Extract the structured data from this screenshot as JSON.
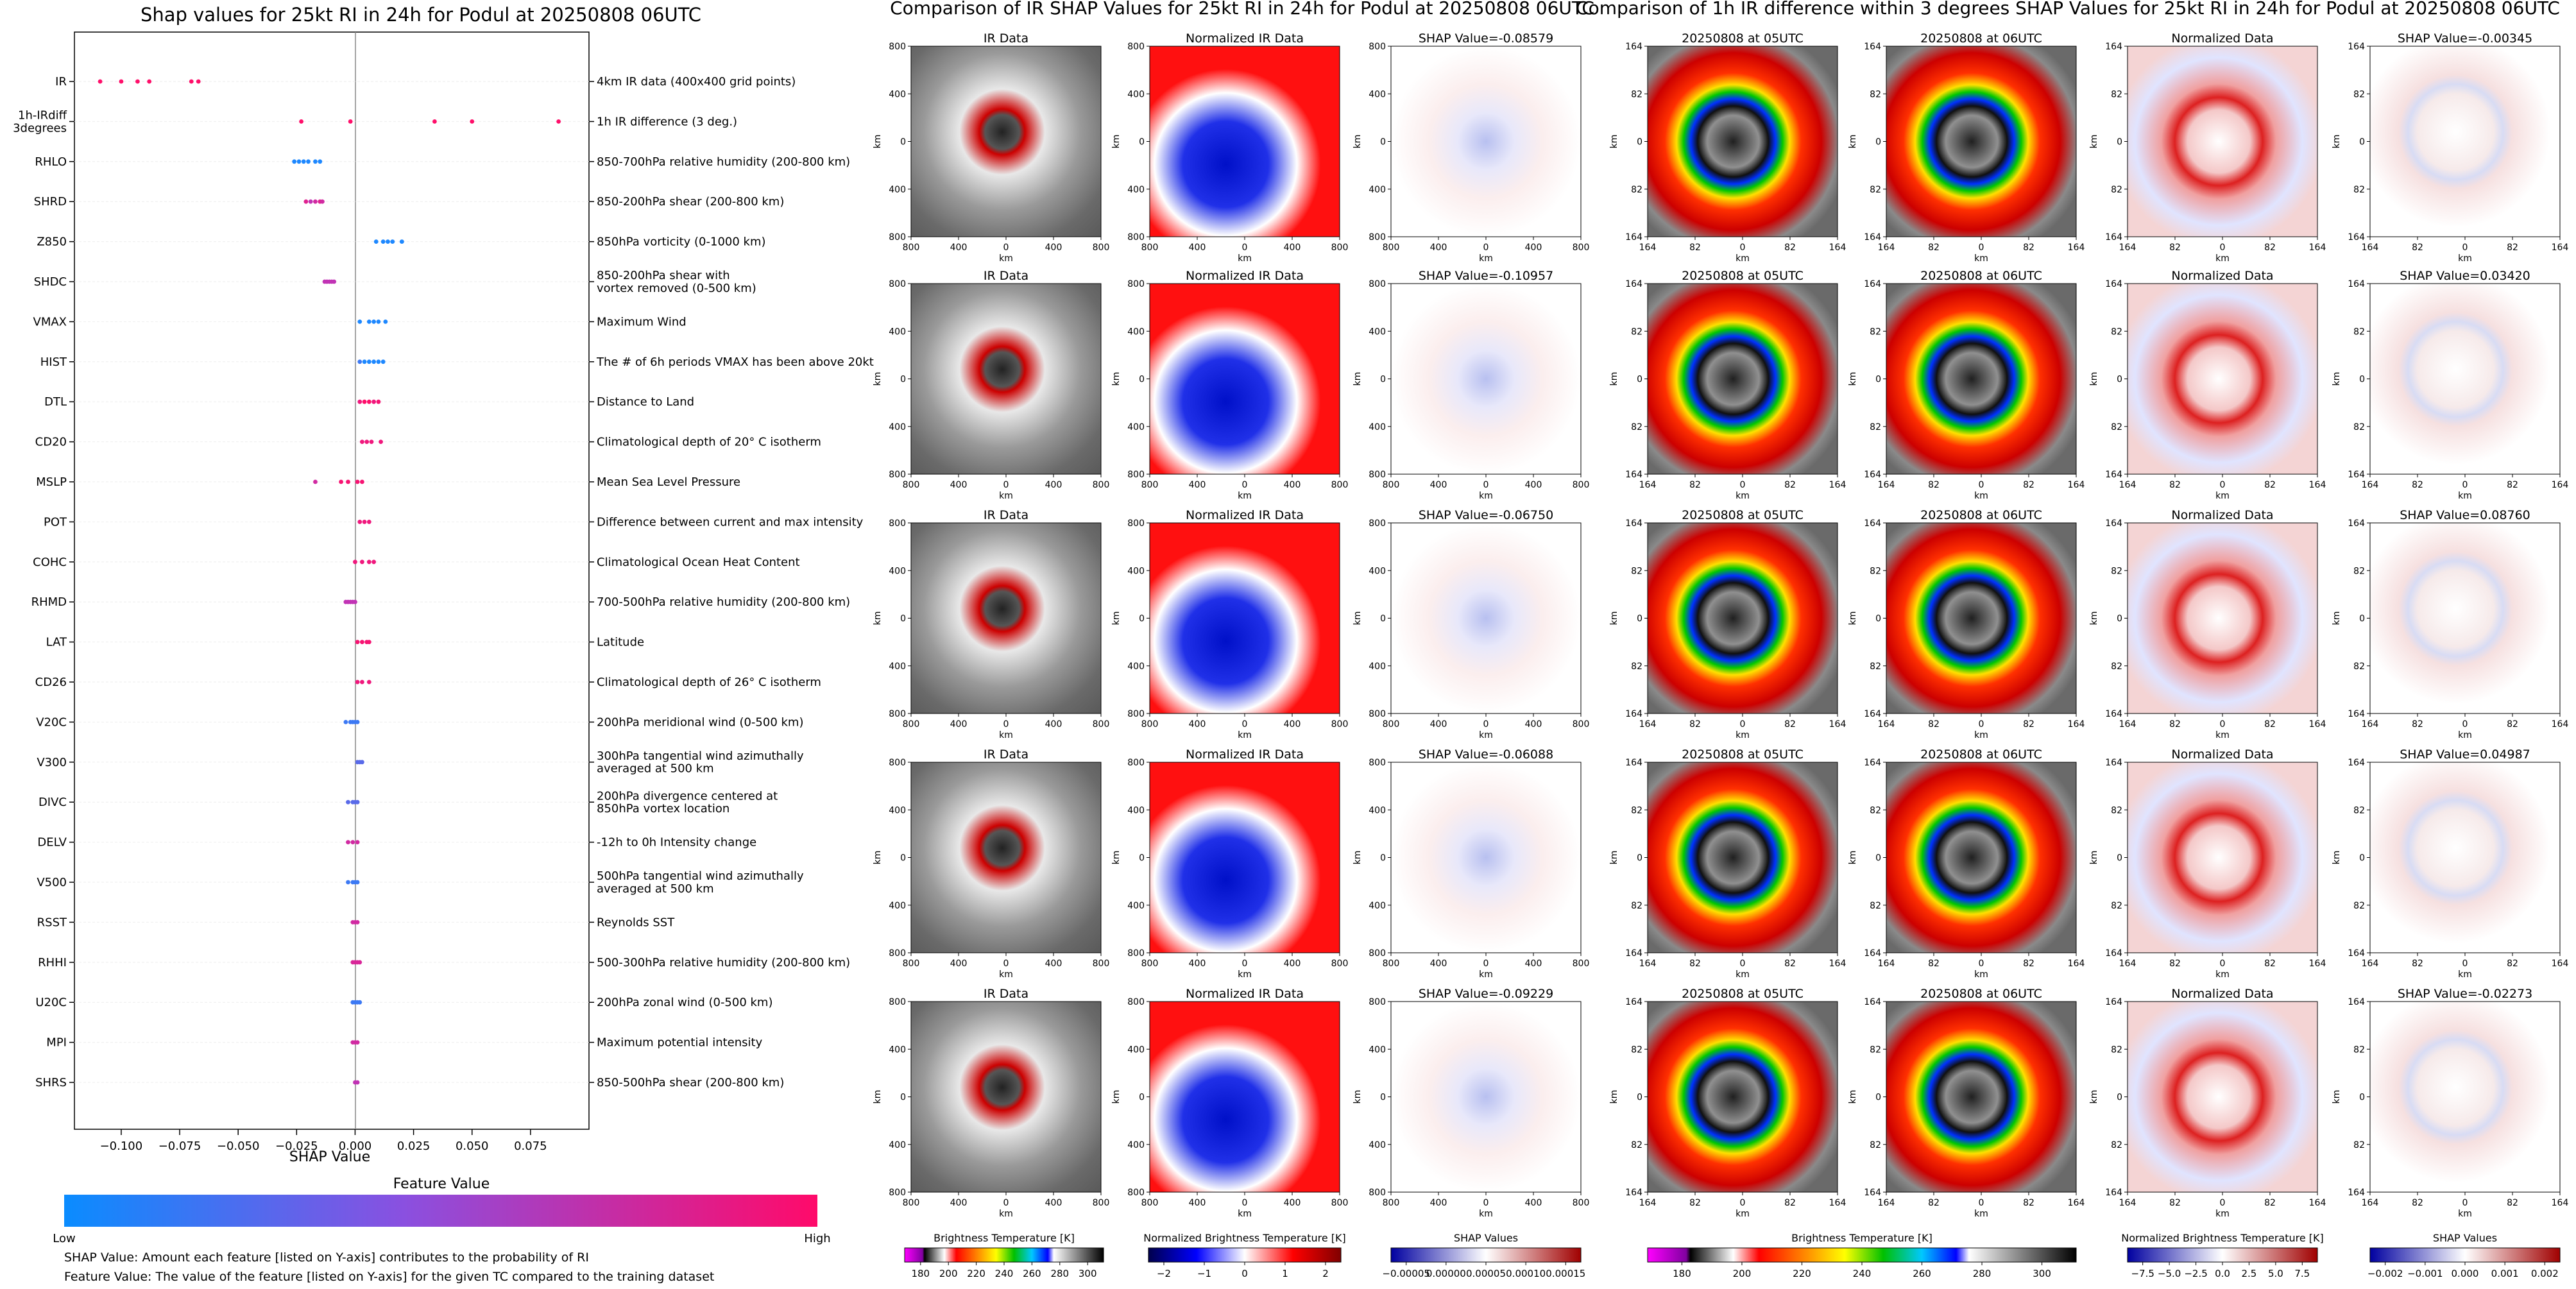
{
  "summary": {
    "title": "Shap values for 25kt RI in 24h for Podul at 20250808 06UTC",
    "xlabel": "SHAP Value",
    "colorbar_title": "Feature Value",
    "colorbar_low": "Low",
    "colorbar_high": "High",
    "note1": "SHAP Value: Amount each feature [listed on Y-axis] contributes to the probability of RI",
    "note2": "Feature Value: The value of the feature [listed on Y-axis] for the given TC compared to the training dataset",
    "colors": {
      "low": "#1e88ff",
      "mid": "#b23cc8",
      "high": "#ff0f6a"
    }
  },
  "chart_data": {
    "type": "scatter",
    "title": "Shap values for 25kt RI in 24h for Podul at 20250808 06UTC",
    "xlabel": "SHAP Value",
    "xlim": [
      -0.12,
      0.1
    ],
    "xticks": [
      -0.1,
      -0.075,
      -0.05,
      -0.025,
      0.0,
      0.025,
      0.05,
      0.075
    ],
    "xtick_labels": [
      "−0.100",
      "−0.075",
      "−0.050",
      "−0.025",
      "0.000",
      "0.025",
      "0.050",
      "0.075"
    ],
    "features": [
      {
        "code": "IR",
        "desc": "4km IR data (400x400 grid points)",
        "points": [
          [
            -0.109,
            1
          ],
          [
            -0.1,
            1
          ],
          [
            -0.093,
            1
          ],
          [
            -0.088,
            1
          ],
          [
            -0.07,
            1
          ],
          [
            -0.067,
            1
          ]
        ]
      },
      {
        "code": "1h-IRdiff\n3degrees",
        "desc": "1h IR difference (3 deg.)",
        "points": [
          [
            -0.023,
            1
          ],
          [
            -0.002,
            1
          ],
          [
            0.034,
            1
          ],
          [
            0.05,
            1
          ],
          [
            0.087,
            1
          ]
        ]
      },
      {
        "code": "RHLO",
        "desc": "850-700hPa relative humidity (200-800 km)",
        "points": [
          [
            -0.026,
            0
          ],
          [
            -0.024,
            0
          ],
          [
            -0.022,
            0
          ],
          [
            -0.02,
            0
          ],
          [
            -0.017,
            0
          ],
          [
            -0.015,
            0
          ]
        ]
      },
      {
        "code": "SHRD",
        "desc": "850-200hPa shear (200-800 km)",
        "points": [
          [
            -0.021,
            0.8
          ],
          [
            -0.019,
            0.6
          ],
          [
            -0.017,
            0.7
          ],
          [
            -0.015,
            0.8
          ],
          [
            -0.014,
            0.7
          ]
        ]
      },
      {
        "code": "Z850",
        "desc": "850hPa vorticity (0-1000 km)",
        "points": [
          [
            0.009,
            0
          ],
          [
            0.012,
            0
          ],
          [
            0.014,
            0
          ],
          [
            0.016,
            0
          ],
          [
            0.02,
            0
          ]
        ]
      },
      {
        "code": "SHDC",
        "desc": "850-200hPa shear with\nvortex removed (0-500 km)",
        "points": [
          [
            -0.013,
            0.6
          ],
          [
            -0.012,
            0.6
          ],
          [
            -0.011,
            0.6
          ],
          [
            -0.01,
            0.6
          ],
          [
            -0.009,
            0.6
          ]
        ]
      },
      {
        "code": "VMAX",
        "desc": "Maximum Wind",
        "points": [
          [
            0.002,
            0
          ],
          [
            0.006,
            0
          ],
          [
            0.008,
            0
          ],
          [
            0.01,
            0
          ],
          [
            0.013,
            0
          ]
        ]
      },
      {
        "code": "HIST",
        "desc": "The # of 6h periods VMAX has been above 20kt",
        "points": [
          [
            0.002,
            0.1
          ],
          [
            0.004,
            0
          ],
          [
            0.006,
            0
          ],
          [
            0.008,
            0
          ],
          [
            0.01,
            0
          ],
          [
            0.012,
            0
          ]
        ]
      },
      {
        "code": "DTL",
        "desc": "Distance to Land",
        "points": [
          [
            0.002,
            0.9
          ],
          [
            0.004,
            1
          ],
          [
            0.006,
            1
          ],
          [
            0.008,
            0.9
          ],
          [
            0.01,
            0.95
          ]
        ]
      },
      {
        "code": "CD20",
        "desc": "Climatological depth of 20° C isotherm",
        "points": [
          [
            0.003,
            0.9
          ],
          [
            0.005,
            0.9
          ],
          [
            0.007,
            0.9
          ],
          [
            0.011,
            0.9
          ]
        ]
      },
      {
        "code": "MSLP",
        "desc": "Mean Sea Level Pressure",
        "points": [
          [
            -0.006,
            0.95
          ],
          [
            -0.003,
            0.95
          ],
          [
            0.001,
            0.95
          ],
          [
            0.003,
            0.95
          ],
          [
            -0.017,
            0.7
          ]
        ]
      },
      {
        "code": "POT",
        "desc": "Difference between current and max intensity",
        "points": [
          [
            0.002,
            0.9
          ],
          [
            0.004,
            0.9
          ],
          [
            0.006,
            0.9
          ]
        ]
      },
      {
        "code": "COHC",
        "desc": "Climatological Ocean Heat Content",
        "points": [
          [
            0.0,
            0.9
          ],
          [
            0.003,
            0.9
          ],
          [
            0.006,
            0.9
          ],
          [
            0.008,
            0.9
          ]
        ]
      },
      {
        "code": "RHMD",
        "desc": "700-500hPa relative humidity (200-800 km)",
        "points": [
          [
            -0.004,
            0.6
          ],
          [
            -0.003,
            0.6
          ],
          [
            -0.002,
            0.6
          ],
          [
            -0.001,
            0.6
          ],
          [
            0.0,
            0.6
          ]
        ]
      },
      {
        "code": "LAT",
        "desc": "Latitude",
        "points": [
          [
            0.001,
            0.95
          ],
          [
            0.003,
            0.95
          ],
          [
            0.005,
            0.95
          ],
          [
            0.006,
            0.95
          ]
        ]
      },
      {
        "code": "CD26",
        "desc": "Climatological depth of 26° C isotherm",
        "points": [
          [
            0.001,
            0.9
          ],
          [
            0.003,
            0.9
          ],
          [
            0.006,
            0.9
          ]
        ]
      },
      {
        "code": "V20C",
        "desc": "200hPa meridional wind (0-500 km)",
        "points": [
          [
            -0.004,
            0.1
          ],
          [
            -0.002,
            0.1
          ],
          [
            -0.001,
            0.1
          ],
          [
            0.0,
            0.1
          ],
          [
            0.001,
            0.1
          ]
        ]
      },
      {
        "code": "V300",
        "desc": "300hPa tangential wind azimuthally\naveraged at 500 km",
        "points": [
          [
            0.001,
            0.2
          ],
          [
            0.002,
            0.2
          ],
          [
            0.003,
            0.2
          ]
        ]
      },
      {
        "code": "DIVC",
        "desc": "200hPa divergence centered at\n850hPa vortex location",
        "points": [
          [
            -0.003,
            0.2
          ],
          [
            -0.001,
            0.2
          ],
          [
            0.0,
            0.2
          ],
          [
            0.001,
            0.2
          ]
        ]
      },
      {
        "code": "DELV",
        "desc": "-12h to 0h Intensity change",
        "points": [
          [
            -0.003,
            0.7
          ],
          [
            -0.001,
            0.7
          ],
          [
            0.001,
            0.7
          ]
        ]
      },
      {
        "code": "V500",
        "desc": "500hPa tangential wind azimuthally\naveraged at 500 km",
        "points": [
          [
            -0.003,
            0.1
          ],
          [
            -0.001,
            0.1
          ],
          [
            0.0,
            0.1
          ],
          [
            0.001,
            0.1
          ]
        ]
      },
      {
        "code": "RSST",
        "desc": "Reynolds SST",
        "points": [
          [
            -0.001,
            0.7
          ],
          [
            0.0,
            0.7
          ],
          [
            0.001,
            0.7
          ]
        ]
      },
      {
        "code": "RHHI",
        "desc": "500-300hPa relative humidity (200-800 km)",
        "points": [
          [
            -0.001,
            0.75
          ],
          [
            0.0,
            0.75
          ],
          [
            0.001,
            0.75
          ],
          [
            0.002,
            0.75
          ]
        ]
      },
      {
        "code": "U20C",
        "desc": "200hPa zonal wind (0-500 km)",
        "points": [
          [
            -0.001,
            0.1
          ],
          [
            0.0,
            0.1
          ],
          [
            0.001,
            0.1
          ],
          [
            0.002,
            0.1
          ]
        ]
      },
      {
        "code": "MPI",
        "desc": "Maximum potential intensity",
        "points": [
          [
            -0.001,
            0.7
          ],
          [
            0.0,
            0.7
          ],
          [
            0.001,
            0.7
          ]
        ]
      },
      {
        "code": "SHRS",
        "desc": "850-500hPa shear (200-800 km)",
        "points": [
          [
            0.0,
            0.6
          ],
          [
            0.001,
            0.6
          ]
        ]
      }
    ]
  },
  "ir_group": {
    "title": "Comparison of IR SHAP Values for 25kt RI in 24h for Podul at 20250808 06UTC",
    "col_titles": [
      "IR Data",
      "Normalized IR Data"
    ],
    "shap_titles": [
      "SHAP Value=-0.08579",
      "SHAP Value=-0.10957",
      "SHAP Value=-0.06750",
      "SHAP Value=-0.06088",
      "SHAP Value=-0.09229"
    ],
    "yticks": [
      "800",
      "400",
      "0",
      "400",
      "800"
    ],
    "xticks": [
      "800",
      "400",
      "0",
      "400",
      "800"
    ],
    "axis_label": "km",
    "colorbars": [
      {
        "label": "Brightness Temperature [K]",
        "ticks": [
          "180",
          "200",
          "220",
          "240",
          "260",
          "280",
          "300"
        ]
      },
      {
        "label": "Normalized Brightness Temperature [K]",
        "ticks": [
          "−2",
          "−1",
          "0",
          "1",
          "2"
        ]
      },
      {
        "label": "SHAP Values",
        "ticks": [
          "−0.00005",
          "0.00000",
          "0.00005",
          "0.00010",
          "0.00015"
        ]
      }
    ]
  },
  "diff_group": {
    "title": "Comparison of 1h IR difference within 3 degrees SHAP Values for 25kt RI in 24h for Podul at 20250808 06UTC",
    "col_titles": [
      "20250808 at 05UTC",
      "20250808 at 06UTC",
      "Normalized Data"
    ],
    "shap_titles": [
      "SHAP Value=-0.00345",
      "SHAP Value=0.03420",
      "SHAP Value=0.08760",
      "SHAP Value=0.04987",
      "SHAP Value=-0.02273"
    ],
    "yticks": [
      "164",
      "82",
      "0",
      "82",
      "164"
    ],
    "xticks": [
      "164",
      "82",
      "0",
      "82",
      "164"
    ],
    "axis_label": "km",
    "colorbars": [
      {
        "label": "Brightness Temperature [K]",
        "ticks": [
          "180",
          "200",
          "220",
          "240",
          "260",
          "280",
          "300"
        ]
      },
      {
        "label": "Normalized Brightness Temperature [K]",
        "ticks": [
          "−7.5",
          "−5.0",
          "−2.5",
          "0.0",
          "2.5",
          "5.0",
          "7.5"
        ]
      },
      {
        "label": "SHAP Values",
        "ticks": [
          "−0.002",
          "−0.001",
          "0.000",
          "0.001",
          "0.002"
        ]
      }
    ]
  }
}
